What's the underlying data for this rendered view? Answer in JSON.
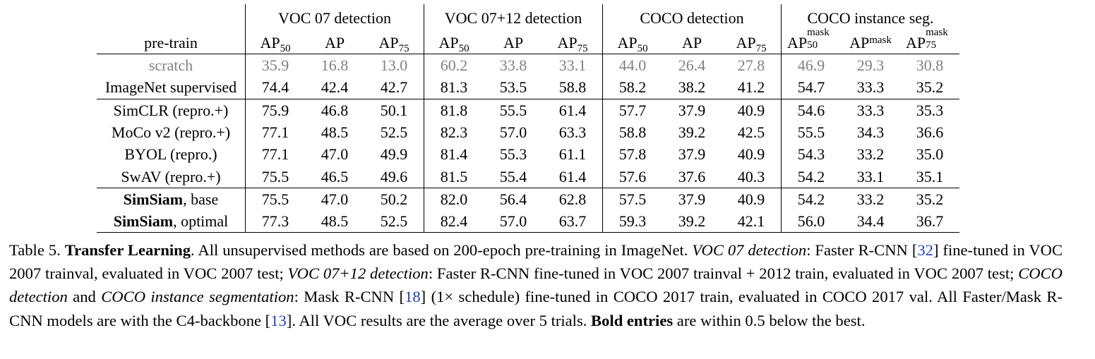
{
  "table": {
    "group_headers": [
      "VOC 07 detection",
      "VOC 07+12 detection",
      "COCO detection",
      "COCO instance seg."
    ],
    "pretrain_header": "pre-train",
    "metric_base": {
      "ap": "AP",
      "sub50": "50",
      "sub75": "75",
      "mask": "mask"
    },
    "rows": [
      {
        "name": "scratch",
        "name_bold": "",
        "name_rest": "",
        "values": [
          "35.9",
          "16.8",
          "13.0",
          "60.2",
          "33.8",
          "33.1",
          "44.0",
          "26.4",
          "27.8",
          "46.9",
          "29.3",
          "30.8"
        ]
      },
      {
        "name": "ImageNet supervised",
        "values": [
          "74.4",
          "42.4",
          "42.7",
          "81.3",
          "53.5",
          "58.8",
          "58.2",
          "38.2",
          "41.2",
          "54.7",
          "33.3",
          "35.2"
        ]
      },
      {
        "name": "SimCLR (repro.+)",
        "values": [
          "75.9",
          "46.8",
          "50.1",
          "81.8",
          "55.5",
          "61.4",
          "57.7",
          "37.9",
          "40.9",
          "54.6",
          "33.3",
          "35.3"
        ]
      },
      {
        "name": "MoCo v2 (repro.+)",
        "values": [
          "77.1",
          "48.5",
          "52.5",
          "82.3",
          "57.0",
          "63.3",
          "58.8",
          "39.2",
          "42.5",
          "55.5",
          "34.3",
          "36.6"
        ]
      },
      {
        "name": "BYOL (repro.)",
        "values": [
          "77.1",
          "47.0",
          "49.9",
          "81.4",
          "55.3",
          "61.1",
          "57.8",
          "37.9",
          "40.9",
          "54.3",
          "33.2",
          "35.0"
        ]
      },
      {
        "name": "SwAV (repro.+)",
        "values": [
          "75.5",
          "46.5",
          "49.6",
          "81.5",
          "55.4",
          "61.4",
          "57.6",
          "37.6",
          "40.3",
          "54.2",
          "33.1",
          "35.1"
        ]
      },
      {
        "name_bold": "SimSiam",
        "name_rest": ", base",
        "values": [
          "75.5",
          "47.0",
          "50.2",
          "82.0",
          "56.4",
          "62.8",
          "57.5",
          "37.9",
          "40.9",
          "54.2",
          "33.2",
          "35.2"
        ]
      },
      {
        "name_bold": "SimSiam",
        "name_rest": ", optimal",
        "values": [
          "77.3",
          "48.5",
          "52.5",
          "82.4",
          "57.0",
          "63.7",
          "59.3",
          "39.2",
          "42.1",
          "56.0",
          "34.4",
          "36.7"
        ]
      }
    ]
  },
  "caption": {
    "label": "Table 5.",
    "title": "Transfer Learning",
    "t1": ".  All unsupervised methods are based on 200-epoch pre-training in ImageNet. ",
    "i1": "VOC 07 detection",
    "t2": ": Faster R-CNN [",
    "c32": "32",
    "t3": "] fine-tuned in VOC 2007 trainval, evaluated in VOC 2007 test; ",
    "i2": "VOC 07+12 detection",
    "t4": ": Faster R-CNN fine-tuned in VOC 2007 trainval + 2012 train, evaluated in VOC 2007 test; ",
    "i3": "COCO detection",
    "t5": " and ",
    "i4": "COCO instance segmentation",
    "t6": ": Mask R-CNN [",
    "c18": "18",
    "t7": "] (1× schedule) fine-tuned in COCO 2017 train, evaluated in COCO 2017 val. All Faster/Mask R-CNN models are with the C4-backbone [",
    "c13": "13",
    "t8": "]. All VOC results are the average over 5 trials. ",
    "bold_entries": "Bold entries",
    "t9": " are within 0.5 below the best."
  }
}
